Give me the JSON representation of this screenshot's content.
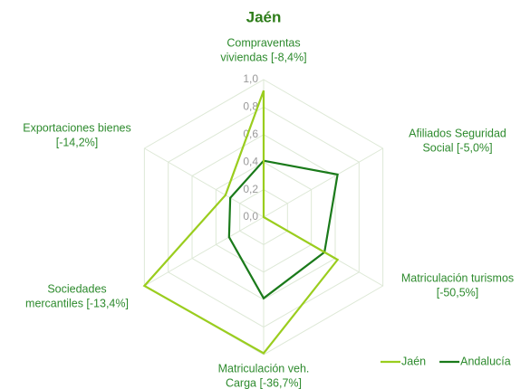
{
  "chart_data": {
    "type": "radar",
    "title": "Jaén",
    "categories": [
      [
        "Compraventas",
        "viviendas [-8,4%]"
      ],
      [
        "Afiliados Seguridad",
        "Social [-5,0%]"
      ],
      [
        "Matriculación turismos",
        "[-50,5%]"
      ],
      [
        "Matriculación veh.",
        "Carga [-36,7%]"
      ],
      [
        "Sociedades",
        "mercantiles [-13,4%]"
      ],
      [
        "Exportaciones bienes",
        "[-14,2%]"
      ]
    ],
    "series": [
      {
        "name": "Jaén",
        "color": "#9acd1e",
        "values": [
          0.92,
          0.0,
          0.62,
          0.99,
          1.0,
          0.32
        ]
      },
      {
        "name": "Andalucía",
        "color": "#1a7a1a",
        "values": [
          0.41,
          0.62,
          0.51,
          0.59,
          0.29,
          0.28
        ]
      }
    ],
    "rlim": [
      0,
      1
    ],
    "rticks": [
      {
        "value": 0,
        "label": "0,0"
      },
      {
        "value": 0.2,
        "label": "0,2"
      },
      {
        "value": 0.4,
        "label": "0,4"
      },
      {
        "value": 0.6,
        "label": "0,6"
      },
      {
        "value": 0.8,
        "label": "0,8"
      },
      {
        "value": 1,
        "label": "1,0"
      }
    ],
    "grid": true,
    "legend": "bottom-right"
  }
}
